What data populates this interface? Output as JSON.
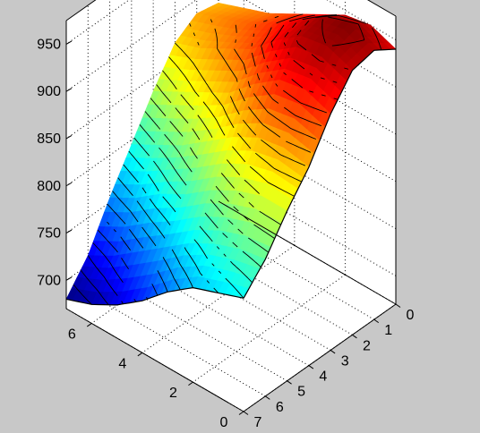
{
  "chart_data": {
    "type": "surface",
    "colormap": "jet",
    "contour_lines": true,
    "grid": true,
    "x": {
      "label": "",
      "ticks": [
        0,
        2,
        4,
        6
      ],
      "tick_labels": [
        "0",
        "2",
        "4",
        "6"
      ],
      "range": [
        0,
        7
      ]
    },
    "y": {
      "label": "",
      "ticks": [
        0,
        1,
        2,
        3,
        4,
        5,
        6,
        7
      ],
      "tick_labels": [
        "0",
        "1",
        "2",
        "3",
        "4",
        "5",
        "6",
        "7"
      ],
      "range": [
        0,
        7
      ]
    },
    "z": {
      "label": "",
      "ticks": [
        700,
        750,
        800,
        850,
        900,
        950
      ],
      "tick_labels": [
        "700",
        "750",
        "800",
        "850",
        "900",
        "950"
      ],
      "range": [
        670,
        975
      ]
    },
    "surface_grid": {
      "x": [
        0,
        1,
        2,
        3,
        4,
        5,
        6,
        7
      ],
      "y": [
        0,
        1,
        2,
        3,
        4,
        5,
        6,
        7
      ],
      "z": [
        [
          940,
          955,
          950,
          920,
          880,
          850,
          815,
          790
        ],
        [
          950,
          968,
          960,
          930,
          885,
          850,
          810,
          780
        ],
        [
          945,
          960,
          955,
          925,
          880,
          840,
          800,
          770
        ],
        [
          930,
          940,
          935,
          905,
          865,
          825,
          785,
          750
        ],
        [
          915,
          920,
          910,
          880,
          845,
          805,
          765,
          725
        ],
        [
          900,
          905,
          895,
          865,
          825,
          790,
          745,
          705
        ],
        [
          890,
          895,
          880,
          850,
          810,
          770,
          725,
          690
        ],
        [
          880,
          885,
          870,
          835,
          795,
          755,
          710,
          680
        ]
      ]
    }
  }
}
